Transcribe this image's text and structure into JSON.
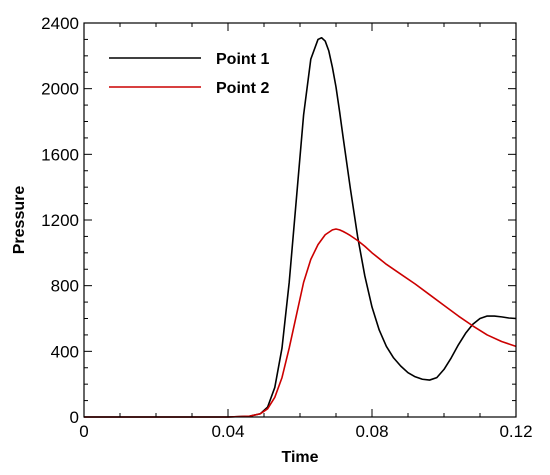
{
  "chart_data": {
    "type": "line",
    "title": "",
    "xlabel": "Time",
    "ylabel": "Pressure",
    "xlim": [
      0,
      0.12
    ],
    "ylim": [
      0,
      2400
    ],
    "xticks": [
      0,
      0.04,
      0.08,
      0.12
    ],
    "yticks": [
      0,
      400,
      800,
      1200,
      1600,
      2000,
      2400
    ],
    "xtick_labels": [
      "0",
      "0.04",
      "0.08",
      "0.12"
    ],
    "ytick_labels": [
      "0",
      "400",
      "800",
      "1200",
      "1600",
      "2000",
      "2400"
    ],
    "grid": false,
    "legend_position": "top-left",
    "series": [
      {
        "name": "Point 1",
        "color": "#000000",
        "x": [
          0,
          0.04,
          0.046,
          0.049,
          0.051,
          0.053,
          0.055,
          0.057,
          0.059,
          0.061,
          0.063,
          0.065,
          0.066,
          0.067,
          0.068,
          0.069,
          0.07,
          0.071,
          0.072,
          0.074,
          0.076,
          0.078,
          0.08,
          0.082,
          0.084,
          0.086,
          0.088,
          0.09,
          0.092,
          0.094,
          0.096,
          0.098,
          0.1,
          0.102,
          0.104,
          0.106,
          0.108,
          0.11,
          0.112,
          0.114,
          0.116,
          0.118,
          0.12
        ],
        "y": [
          0,
          0,
          5,
          20,
          60,
          180,
          420,
          820,
          1330,
          1840,
          2180,
          2300,
          2310,
          2290,
          2230,
          2130,
          2010,
          1860,
          1700,
          1390,
          1100,
          860,
          670,
          530,
          430,
          360,
          310,
          270,
          245,
          230,
          225,
          240,
          290,
          360,
          440,
          510,
          565,
          600,
          615,
          615,
          610,
          603,
          600
        ]
      },
      {
        "name": "Point 2",
        "color": "#cc0000",
        "x": [
          0,
          0.04,
          0.046,
          0.049,
          0.051,
          0.053,
          0.055,
          0.057,
          0.059,
          0.061,
          0.063,
          0.065,
          0.067,
          0.069,
          0.07,
          0.071,
          0.072,
          0.073,
          0.074,
          0.076,
          0.078,
          0.08,
          0.084,
          0.088,
          0.092,
          0.096,
          0.1,
          0.104,
          0.108,
          0.112,
          0.116,
          0.12
        ],
        "y": [
          0,
          0,
          5,
          20,
          50,
          120,
          240,
          420,
          620,
          820,
          960,
          1050,
          1110,
          1140,
          1145,
          1140,
          1130,
          1118,
          1105,
          1075,
          1040,
          1000,
          930,
          870,
          810,
          745,
          680,
          615,
          555,
          500,
          460,
          430
        ]
      }
    ]
  }
}
